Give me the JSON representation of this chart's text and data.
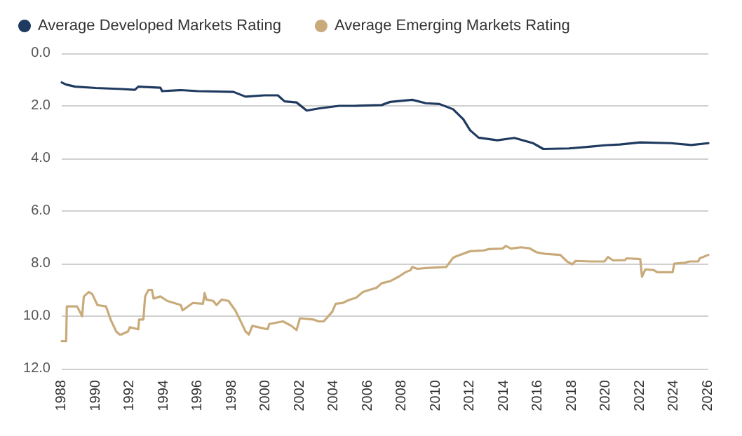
{
  "chart_data": {
    "type": "line",
    "series": [
      {
        "name": "Average Developed Markets Rating",
        "color": "#1f3a5f",
        "x": [
          1988.0,
          1988.26,
          1988.8,
          1990,
          1991.5,
          1992.3,
          1992.5,
          1993.8,
          1993.9,
          1995,
          1996,
          1998.1,
          1998.8,
          1999.9,
          2000.7,
          2001.1,
          2001.8,
          2002.4,
          2003.1,
          2004.3,
          2005.2,
          2006.8,
          2007.3,
          2008.6,
          2009.4,
          2010.2,
          2011,
          2011.6,
          2012.0,
          2012.5,
          2013.6,
          2014.6,
          2015.7,
          2016.3,
          2017.8,
          2019.1,
          2019.9,
          2020.8,
          2022,
          2023.8,
          2025,
          2026
        ],
        "values": [
          1.11,
          1.19,
          1.27,
          1.32,
          1.36,
          1.39,
          1.27,
          1.31,
          1.44,
          1.4,
          1.44,
          1.47,
          1.65,
          1.6,
          1.6,
          1.83,
          1.87,
          2.18,
          2.1,
          2.0,
          2.0,
          1.97,
          1.85,
          1.77,
          1.9,
          1.93,
          2.13,
          2.51,
          2.93,
          3.21,
          3.31,
          3.22,
          3.42,
          3.64,
          3.62,
          3.55,
          3.5,
          3.47,
          3.39,
          3.42,
          3.49,
          3.42
        ]
      },
      {
        "name": "Average Emerging Markets Rating",
        "color": "#c9ab7b",
        "x": [
          1988,
          1988.26,
          1988.3,
          1988.9,
          1989.2,
          1989.3,
          1989.6,
          1989.8,
          1990.1,
          1990.6,
          1990.9,
          1991.2,
          1991.4,
          1991.5,
          1991.9,
          1992,
          1992.5,
          1992.55,
          1992.8,
          1992.9,
          1993.1,
          1993.3,
          1993.4,
          1993.8,
          1994.2,
          1995,
          1995.1,
          1995.7,
          1996.3,
          1996.4,
          1996.5,
          1996.9,
          1997.1,
          1997.4,
          1997.8,
          1998.2,
          1998.5,
          1998.8,
          1999,
          1999.2,
          2000.1,
          2000.2,
          2001,
          2001.5,
          2001.8,
          2002,
          2002.8,
          2003.1,
          2003.4,
          2003.9,
          2004.1,
          2004.5,
          2004.9,
          2005.3,
          2005.7,
          2006.1,
          2006.5,
          2006.8,
          2007.3,
          2007.8,
          2008.2,
          2008.5,
          2008.6,
          2008.9,
          2009.4,
          2010.6,
          2011,
          2011.2,
          2012,
          2012.8,
          2013.1,
          2013.9,
          2014.1,
          2014.4,
          2015,
          2015.5,
          2015.9,
          2016.4,
          2017.3,
          2017.7,
          2018,
          2018.2,
          2019.1,
          2019.9,
          2020.1,
          2020.4,
          2021.1,
          2021.2,
          2022,
          2022.1,
          2022.3,
          2022.8,
          2023,
          2023.9,
          2024,
          2024.6,
          2024.9,
          2025.4,
          2025.5,
          2026
        ],
        "values": [
          10.95,
          10.95,
          9.63,
          9.63,
          10.0,
          9.25,
          9.08,
          9.17,
          9.58,
          9.63,
          10.17,
          10.58,
          10.7,
          10.7,
          10.58,
          10.42,
          10.5,
          10.13,
          10.13,
          9.25,
          9.0,
          9.0,
          9.33,
          9.25,
          9.42,
          9.58,
          9.78,
          9.5,
          9.53,
          9.12,
          9.37,
          9.42,
          9.58,
          9.37,
          9.42,
          9.78,
          10.17,
          10.58,
          10.7,
          10.37,
          10.5,
          10.3,
          10.2,
          10.37,
          10.53,
          10.08,
          10.13,
          10.2,
          10.2,
          9.83,
          9.53,
          9.5,
          9.38,
          9.3,
          9.08,
          9.0,
          8.92,
          8.75,
          8.67,
          8.5,
          8.33,
          8.25,
          8.13,
          8.2,
          8.17,
          8.13,
          7.78,
          7.72,
          7.53,
          7.5,
          7.45,
          7.43,
          7.33,
          7.43,
          7.38,
          7.42,
          7.57,
          7.63,
          7.67,
          7.92,
          8.03,
          7.9,
          7.92,
          7.92,
          7.75,
          7.88,
          7.87,
          7.8,
          7.83,
          8.5,
          8.22,
          8.25,
          8.33,
          8.33,
          8.0,
          7.97,
          7.92,
          7.92,
          7.8,
          7.67
        ]
      }
    ],
    "xlim": [
      1988,
      2026
    ],
    "xticks": [
      1988,
      1990,
      1992,
      1994,
      1996,
      1998,
      2000,
      2002,
      2004,
      2006,
      2008,
      2010,
      2012,
      2014,
      2016,
      2018,
      2020,
      2022,
      2024,
      2026
    ],
    "ylim": [
      12,
      0
    ],
    "yticks": [
      {
        "value": 0,
        "label": "0.0"
      },
      {
        "value": 2,
        "label": "2.0"
      },
      {
        "value": 4,
        "label": "4.0"
      },
      {
        "value": 6,
        "label": "6.0"
      },
      {
        "value": 8,
        "label": "8.0"
      },
      {
        "value": 10,
        "label": "10.0"
      },
      {
        "value": 12,
        "label": "12.0"
      }
    ],
    "grid": "y",
    "legend": "top left",
    "marker": "none"
  }
}
